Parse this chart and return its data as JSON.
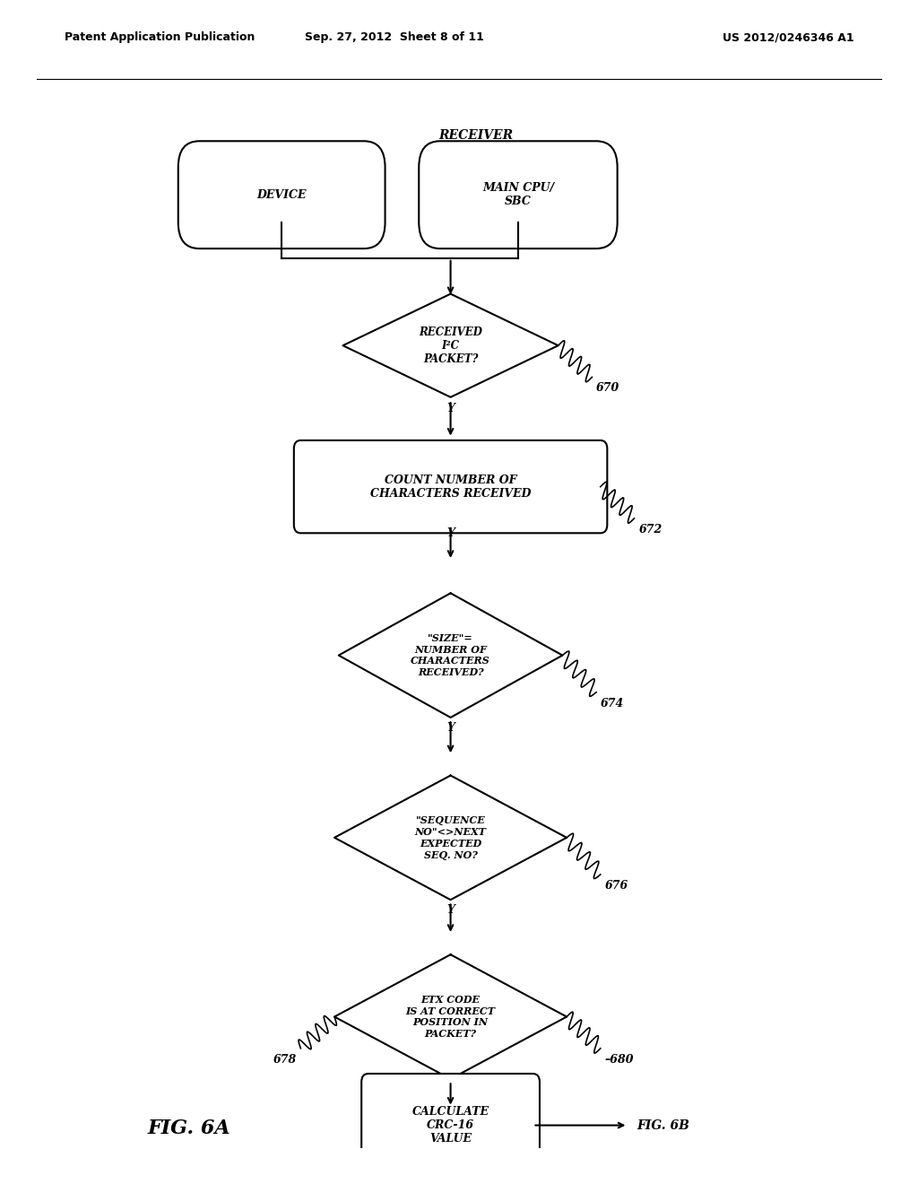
{
  "bg_color": "#ffffff",
  "header_left": "Patent Application Publication",
  "header_mid": "Sep. 27, 2012  Sheet 8 of 11",
  "header_right": "US 2012/0246346 A1",
  "fig_label": "FIG. 6A",
  "fig_ref": "FIG. 6B",
  "receiver_label": "RECEIVER",
  "device_label": "DEVICE",
  "main_cpu_label": "MAIN CPU/\nSBC"
}
